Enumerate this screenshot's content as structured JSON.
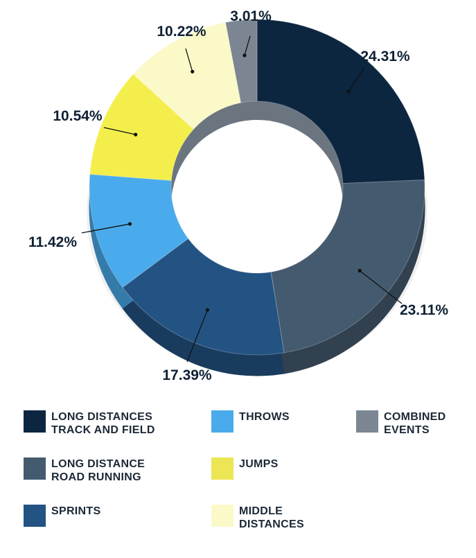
{
  "chart_data": {
    "type": "pie",
    "donut": true,
    "categories": [
      "LONG DISTANCES TRACK AND FIELD",
      "LONG DISTANCE ROAD RUNNING",
      "SPRINTS",
      "THROWS",
      "JUMPS",
      "MIDDLE DISTANCES",
      "COMBINED EVENTS"
    ],
    "values": [
      24.31,
      23.11,
      17.39,
      11.42,
      10.54,
      10.22,
      3.01
    ],
    "value_labels": [
      "24.31%",
      "23.11%",
      "17.39%",
      "11.42%",
      "10.54%",
      "10.22%",
      "3.01%"
    ],
    "colors": [
      "#0c2640",
      "#445a6f",
      "#235383",
      "#4aabec",
      "#f4ee4c",
      "#fbf9c8",
      "#7b8692"
    ],
    "legend": {
      "position": "bottom",
      "items": [
        {
          "line1": "LONG DISTANCES",
          "line2": "TRACK AND FIELD",
          "color": "#0c2640"
        },
        {
          "line1": "LONG DISTANCE",
          "line2": "ROAD RUNNING",
          "color": "#445a6f"
        },
        {
          "line1": "SPRINTS",
          "line2": "",
          "color": "#235383"
        },
        {
          "line1": "THROWS",
          "line2": "",
          "color": "#4aabec"
        },
        {
          "line1": "JUMPS",
          "line2": "",
          "color": "#ece554"
        },
        {
          "line1": "MIDDLE",
          "line2": "DISTANCES",
          "color": "#fbf9c8"
        },
        {
          "line1": "COMBINED",
          "line2": "EVENTS",
          "color": "#7b8692"
        }
      ]
    }
  }
}
